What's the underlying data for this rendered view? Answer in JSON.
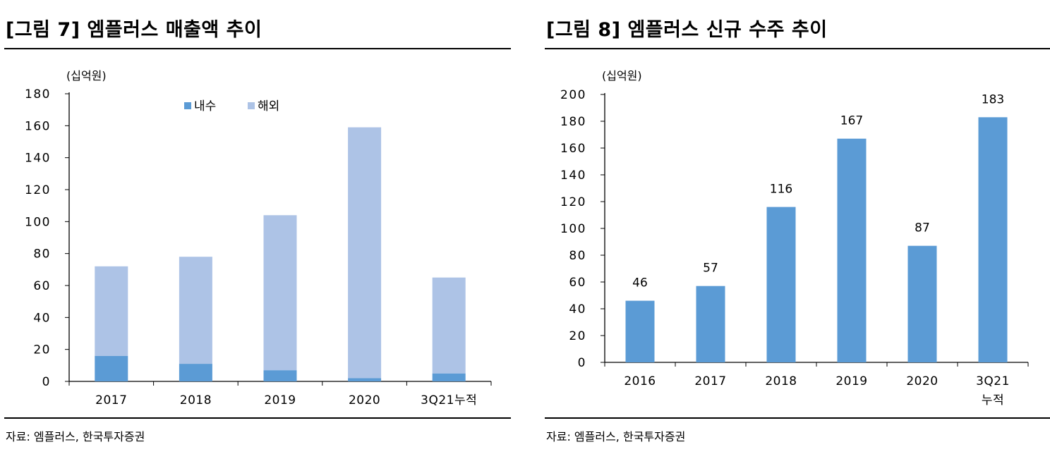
{
  "figures": [
    {
      "title": "[그림 7] 엠플러스 매출액 추이",
      "source": "자료: 엠플러스, 한국투자증권"
    },
    {
      "title": "[그림 8] 엠플러스 신규 수주 추이",
      "source": "자료: 엠플러스, 한국투자증권"
    }
  ],
  "chart_data": [
    {
      "type": "bar",
      "stacked": true,
      "title": "[그림 7] 엠플러스 매출액 추이",
      "unit_label": "(십억원)",
      "categories": [
        "2017",
        "2018",
        "2019",
        "2020",
        "3Q21누적"
      ],
      "series": [
        {
          "name": "내수",
          "values": [
            16,
            11,
            7,
            2,
            5
          ],
          "color": "#5b9bd5"
        },
        {
          "name": "해외",
          "values": [
            56,
            67,
            97,
            157,
            60
          ],
          "color": "#adc3e6"
        }
      ],
      "ylim": [
        0,
        180
      ],
      "yticks": [
        0,
        20,
        40,
        60,
        80,
        100,
        120,
        140,
        160,
        180
      ],
      "legend": "top-center",
      "grid": false
    },
    {
      "type": "bar",
      "title": "[그림 8] 엠플러스 신규 수주 추이",
      "unit_label": "(십억원)",
      "categories": [
        "2016",
        "2017",
        "2018",
        "2019",
        "2020",
        "3Q21\n누적"
      ],
      "values": [
        46,
        57,
        116,
        167,
        87,
        183
      ],
      "data_labels": [
        "46",
        "57",
        "116",
        "167",
        "87",
        "183"
      ],
      "color": "#5b9bd5",
      "ylim": [
        0,
        200
      ],
      "yticks": [
        0,
        20,
        40,
        60,
        80,
        100,
        120,
        140,
        160,
        180,
        200
      ],
      "grid": false
    }
  ]
}
